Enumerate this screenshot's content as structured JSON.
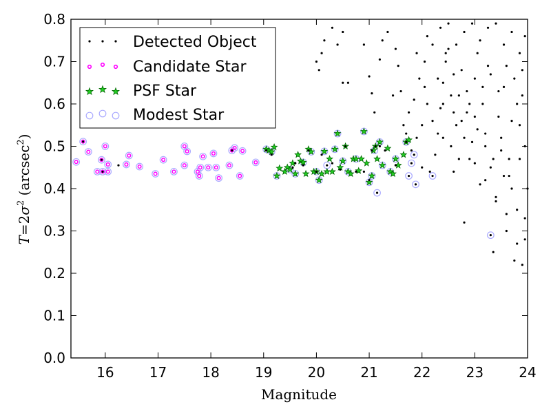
{
  "chart_data": {
    "type": "scatter",
    "xlabel": "Magnitude",
    "ylabel": "T=2σ² (arcsec²)",
    "ylabel_parts": {
      "t": "T",
      "eq": "=2",
      "sigma": "σ",
      "sup": "2",
      "open": " (arcsec",
      "close": ")"
    },
    "xlim": [
      15.35,
      24.0
    ],
    "ylim": [
      0.0,
      0.8
    ],
    "x_ticks": [
      16,
      17,
      18,
      19,
      20,
      21,
      22,
      23,
      24
    ],
    "y_ticks": [
      0.0,
      0.1,
      0.2,
      0.3,
      0.4,
      0.5,
      0.6,
      0.7,
      0.8
    ],
    "y_tick_labels": [
      "0.0",
      "0.1",
      "0.2",
      "0.3",
      "0.4",
      "0.5",
      "0.6",
      "0.7",
      "0.8"
    ],
    "grid": false,
    "legend_position": "top-left",
    "colors": {
      "detected": "#000000",
      "candidate": "#ff00ff",
      "psf": "#00aa00",
      "modest": "#aaaaff"
    },
    "series": [
      {
        "name": "Detected Object",
        "marker": "dot",
        "points": [
          [
            15.58,
            0.511
          ],
          [
            15.93,
            0.468
          ],
          [
            15.95,
            0.44
          ],
          [
            16.25,
            0.455
          ],
          [
            18.4,
            0.49
          ],
          [
            19.05,
            0.49
          ],
          [
            19.15,
            0.48
          ],
          [
            19.55,
            0.45
          ],
          [
            19.6,
            0.46
          ],
          [
            19.75,
            0.455
          ],
          [
            19.85,
            0.49
          ],
          [
            20.0,
            0.44
          ],
          [
            20.1,
            0.48
          ],
          [
            20.2,
            0.455
          ],
          [
            20.3,
            0.46
          ],
          [
            20.45,
            0.445
          ],
          [
            20.55,
            0.5
          ],
          [
            20.75,
            0.44
          ],
          [
            20.9,
            0.44
          ],
          [
            21.0,
            0.42
          ],
          [
            21.05,
            0.49
          ],
          [
            21.12,
            0.5
          ],
          [
            21.2,
            0.5
          ],
          [
            21.3,
            0.49
          ],
          [
            21.5,
            0.455
          ],
          [
            21.7,
            0.51
          ],
          [
            21.8,
            0.46
          ],
          [
            21.85,
            0.48
          ],
          [
            21.75,
            0.43
          ],
          [
            21.88,
            0.41
          ],
          [
            21.15,
            0.39
          ],
          [
            22.2,
            0.43
          ],
          [
            23.3,
            0.29
          ],
          [
            20.0,
            0.7
          ],
          [
            20.05,
            0.68
          ],
          [
            20.1,
            0.72
          ],
          [
            20.15,
            0.75
          ],
          [
            20.3,
            0.78
          ],
          [
            20.5,
            0.65
          ],
          [
            20.6,
            0.65
          ],
          [
            20.4,
            0.74
          ],
          [
            20.5,
            0.77
          ],
          [
            20.9,
            0.74
          ],
          [
            21.0,
            0.665
          ],
          [
            21.05,
            0.625
          ],
          [
            21.1,
            0.58
          ],
          [
            21.2,
            0.705
          ],
          [
            21.25,
            0.75
          ],
          [
            21.35,
            0.77
          ],
          [
            21.5,
            0.73
          ],
          [
            21.55,
            0.69
          ],
          [
            21.6,
            0.63
          ],
          [
            21.7,
            0.53
          ],
          [
            21.8,
            0.49
          ],
          [
            21.9,
            0.52
          ],
          [
            22.0,
            0.55
          ],
          [
            22.05,
            0.64
          ],
          [
            22.1,
            0.76
          ],
          [
            22.15,
            0.44
          ],
          [
            22.25,
            0.48
          ],
          [
            22.3,
            0.53
          ],
          [
            22.35,
            0.59
          ],
          [
            22.4,
            0.65
          ],
          [
            22.45,
            0.7
          ],
          [
            22.5,
            0.73
          ],
          [
            22.55,
            0.5
          ],
          [
            22.6,
            0.44
          ],
          [
            22.65,
            0.55
          ],
          [
            22.7,
            0.62
          ],
          [
            22.75,
            0.68
          ],
          [
            22.8,
            0.32
          ],
          [
            22.85,
            0.58
          ],
          [
            22.9,
            0.47
          ],
          [
            22.95,
            0.51
          ],
          [
            23.0,
            0.66
          ],
          [
            23.05,
            0.72
          ],
          [
            23.1,
            0.41
          ],
          [
            23.15,
            0.6
          ],
          [
            23.2,
            0.53
          ],
          [
            23.25,
            0.69
          ],
          [
            23.3,
            0.45
          ],
          [
            23.35,
            0.25
          ],
          [
            23.4,
            0.38
          ],
          [
            23.45,
            0.57
          ],
          [
            23.5,
            0.49
          ],
          [
            23.55,
            0.64
          ],
          [
            23.6,
            0.3
          ],
          [
            23.65,
            0.43
          ],
          [
            23.7,
            0.56
          ],
          [
            23.75,
            0.23
          ],
          [
            23.8,
            0.35
          ],
          [
            23.85,
            0.47
          ],
          [
            23.9,
            0.22
          ],
          [
            23.95,
            0.28
          ],
          [
            24.0,
            0.4
          ],
          [
            23.85,
            0.72
          ],
          [
            23.7,
            0.77
          ],
          [
            23.55,
            0.74
          ],
          [
            23.4,
            0.79
          ],
          [
            23.25,
            0.78
          ],
          [
            23.1,
            0.75
          ],
          [
            22.95,
            0.79
          ],
          [
            22.8,
            0.77
          ],
          [
            22.65,
            0.74
          ],
          [
            22.5,
            0.79
          ],
          [
            22.35,
            0.78
          ],
          [
            22.2,
            0.74
          ],
          [
            22.05,
            0.7
          ],
          [
            21.95,
            0.66
          ],
          [
            21.85,
            0.61
          ],
          [
            21.75,
            0.58
          ],
          [
            21.65,
            0.55
          ],
          [
            21.45,
            0.62
          ],
          [
            22.4,
            0.6
          ],
          [
            22.6,
            0.58
          ],
          [
            22.8,
            0.52
          ],
          [
            23.0,
            0.46
          ],
          [
            23.2,
            0.42
          ],
          [
            23.4,
            0.37
          ],
          [
            23.6,
            0.34
          ],
          [
            23.8,
            0.27
          ],
          [
            23.95,
            0.33
          ],
          [
            23.9,
            0.62
          ],
          [
            23.75,
            0.66
          ],
          [
            23.6,
            0.69
          ],
          [
            23.45,
            0.63
          ],
          [
            23.3,
            0.67
          ],
          [
            23.15,
            0.64
          ],
          [
            23.0,
            0.57
          ],
          [
            22.85,
            0.63
          ],
          [
            22.7,
            0.47
          ],
          [
            22.55,
            0.62
          ],
          [
            22.4,
            0.52
          ],
          [
            22.3,
            0.66
          ],
          [
            22.2,
            0.56
          ],
          [
            22.1,
            0.6
          ],
          [
            22.0,
            0.45
          ],
          [
            21.9,
            0.72
          ],
          [
            23.5,
            0.52
          ],
          [
            23.65,
            0.47
          ],
          [
            23.85,
            0.55
          ],
          [
            23.95,
            0.5
          ],
          [
            23.7,
            0.4
          ],
          [
            23.55,
            0.43
          ],
          [
            23.35,
            0.47
          ],
          [
            23.2,
            0.5
          ],
          [
            23.05,
            0.54
          ],
          [
            22.9,
            0.6
          ],
          [
            22.75,
            0.56
          ],
          [
            22.6,
            0.67
          ],
          [
            22.45,
            0.72
          ],
          [
            23.8,
            0.6
          ],
          [
            23.9,
            0.68
          ],
          [
            23.95,
            0.76
          ]
        ]
      },
      {
        "name": "Candidate Star",
        "marker": "ring",
        "points": [
          [
            15.45,
            0.463
          ],
          [
            15.58,
            0.511
          ],
          [
            15.68,
            0.487
          ],
          [
            15.85,
            0.44
          ],
          [
            15.93,
            0.468
          ],
          [
            15.95,
            0.44
          ],
          [
            16.0,
            0.5
          ],
          [
            16.05,
            0.44
          ],
          [
            16.05,
            0.457
          ],
          [
            16.4,
            0.457
          ],
          [
            16.45,
            0.478
          ],
          [
            16.65,
            0.452
          ],
          [
            16.95,
            0.435
          ],
          [
            17.1,
            0.468
          ],
          [
            17.3,
            0.44
          ],
          [
            17.5,
            0.455
          ],
          [
            17.5,
            0.5
          ],
          [
            17.55,
            0.488
          ],
          [
            17.75,
            0.44
          ],
          [
            17.78,
            0.43
          ],
          [
            17.8,
            0.45
          ],
          [
            17.85,
            0.476
          ],
          [
            17.95,
            0.45
          ],
          [
            18.05,
            0.483
          ],
          [
            18.1,
            0.45
          ],
          [
            18.15,
            0.425
          ],
          [
            18.35,
            0.455
          ],
          [
            18.4,
            0.49
          ],
          [
            18.45,
            0.496
          ],
          [
            18.55,
            0.43
          ],
          [
            18.6,
            0.489
          ],
          [
            18.85,
            0.462
          ]
        ]
      },
      {
        "name": "PSF Star",
        "marker": "star",
        "points": [
          [
            19.05,
            0.493
          ],
          [
            19.1,
            0.49
          ],
          [
            19.15,
            0.487
          ],
          [
            19.2,
            0.498
          ],
          [
            19.25,
            0.43
          ],
          [
            19.3,
            0.448
          ],
          [
            19.4,
            0.44
          ],
          [
            19.45,
            0.45
          ],
          [
            19.5,
            0.445
          ],
          [
            19.55,
            0.46
          ],
          [
            19.6,
            0.435
          ],
          [
            19.65,
            0.48
          ],
          [
            19.7,
            0.465
          ],
          [
            19.75,
            0.462
          ],
          [
            19.8,
            0.435
          ],
          [
            19.85,
            0.493
          ],
          [
            19.9,
            0.487
          ],
          [
            19.95,
            0.44
          ],
          [
            20.0,
            0.44
          ],
          [
            20.05,
            0.42
          ],
          [
            20.1,
            0.435
          ],
          [
            20.15,
            0.488
          ],
          [
            20.2,
            0.44
          ],
          [
            20.25,
            0.47
          ],
          [
            20.3,
            0.44
          ],
          [
            20.35,
            0.493
          ],
          [
            20.4,
            0.53
          ],
          [
            20.45,
            0.45
          ],
          [
            20.5,
            0.465
          ],
          [
            20.55,
            0.5
          ],
          [
            20.6,
            0.44
          ],
          [
            20.65,
            0.435
          ],
          [
            20.7,
            0.47
          ],
          [
            20.75,
            0.47
          ],
          [
            20.8,
            0.442
          ],
          [
            20.85,
            0.47
          ],
          [
            20.9,
            0.535
          ],
          [
            20.95,
            0.46
          ],
          [
            21.0,
            0.415
          ],
          [
            21.05,
            0.43
          ],
          [
            21.08,
            0.49
          ],
          [
            21.12,
            0.5
          ],
          [
            21.15,
            0.47
          ],
          [
            21.2,
            0.51
          ],
          [
            21.25,
            0.455
          ],
          [
            21.35,
            0.495
          ],
          [
            21.4,
            0.44
          ],
          [
            21.45,
            0.435
          ],
          [
            21.5,
            0.47
          ],
          [
            21.55,
            0.455
          ],
          [
            21.65,
            0.48
          ],
          [
            21.7,
            0.51
          ],
          [
            21.75,
            0.515
          ]
        ]
      },
      {
        "name": "Modest Star",
        "marker": "open-circle",
        "points": [
          [
            15.45,
            0.463
          ],
          [
            15.58,
            0.511
          ],
          [
            15.68,
            0.487
          ],
          [
            15.85,
            0.44
          ],
          [
            15.93,
            0.468
          ],
          [
            15.95,
            0.44
          ],
          [
            16.0,
            0.5
          ],
          [
            16.05,
            0.44
          ],
          [
            16.05,
            0.457
          ],
          [
            16.4,
            0.457
          ],
          [
            16.45,
            0.478
          ],
          [
            16.65,
            0.452
          ],
          [
            16.95,
            0.435
          ],
          [
            17.1,
            0.468
          ],
          [
            17.3,
            0.44
          ],
          [
            17.5,
            0.455
          ],
          [
            17.5,
            0.5
          ],
          [
            17.55,
            0.488
          ],
          [
            17.75,
            0.44
          ],
          [
            17.78,
            0.43
          ],
          [
            17.8,
            0.45
          ],
          [
            17.85,
            0.476
          ],
          [
            17.95,
            0.45
          ],
          [
            18.05,
            0.483
          ],
          [
            18.1,
            0.45
          ],
          [
            18.15,
            0.425
          ],
          [
            18.35,
            0.455
          ],
          [
            18.4,
            0.49
          ],
          [
            18.45,
            0.496
          ],
          [
            18.55,
            0.43
          ],
          [
            18.6,
            0.489
          ],
          [
            18.85,
            0.462
          ],
          [
            19.05,
            0.493
          ],
          [
            19.15,
            0.487
          ],
          [
            19.25,
            0.43
          ],
          [
            19.5,
            0.445
          ],
          [
            19.6,
            0.435
          ],
          [
            19.75,
            0.462
          ],
          [
            19.9,
            0.487
          ],
          [
            20.0,
            0.44
          ],
          [
            20.05,
            0.42
          ],
          [
            20.15,
            0.488
          ],
          [
            20.2,
            0.455
          ],
          [
            20.35,
            0.493
          ],
          [
            20.4,
            0.53
          ],
          [
            20.5,
            0.465
          ],
          [
            20.6,
            0.44
          ],
          [
            20.75,
            0.47
          ],
          [
            20.9,
            0.535
          ],
          [
            21.0,
            0.415
          ],
          [
            21.05,
            0.43
          ],
          [
            21.1,
            0.49
          ],
          [
            21.15,
            0.39
          ],
          [
            21.2,
            0.51
          ],
          [
            21.25,
            0.455
          ],
          [
            21.4,
            0.44
          ],
          [
            21.5,
            0.47
          ],
          [
            21.7,
            0.51
          ],
          [
            21.75,
            0.43
          ],
          [
            21.8,
            0.46
          ],
          [
            21.85,
            0.48
          ],
          [
            21.88,
            0.41
          ],
          [
            22.2,
            0.43
          ],
          [
            23.3,
            0.29
          ]
        ]
      }
    ]
  }
}
